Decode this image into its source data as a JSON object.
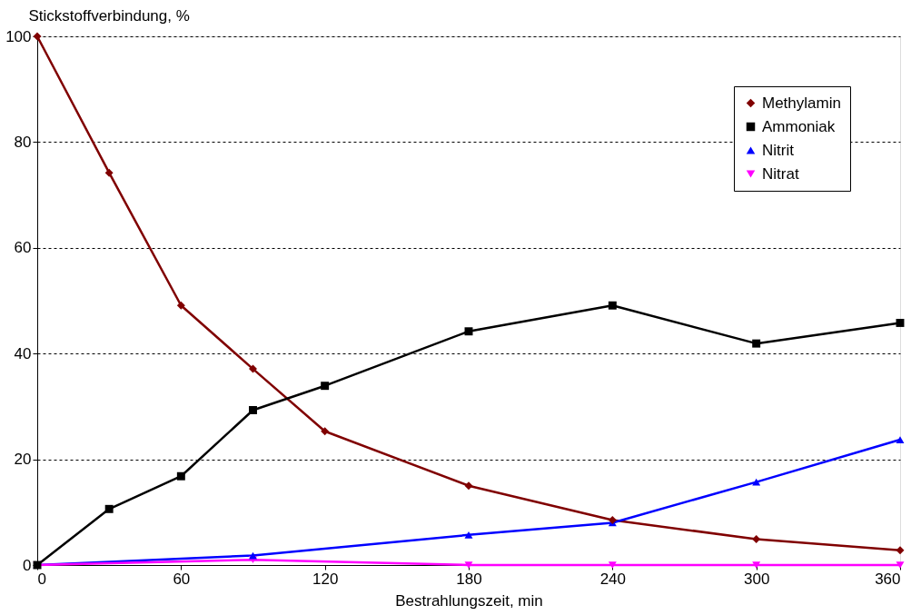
{
  "chart_data": {
    "type": "line",
    "xlabel": "Bestrahlungszeit,  min",
    "ylabel": "Stickstoffverbindung,  %",
    "xlim": [
      0,
      360
    ],
    "xticks": [
      0,
      60,
      120,
      180,
      240,
      300,
      360
    ],
    "ylim": [
      0,
      100
    ],
    "yticks": [
      0,
      20,
      40,
      60,
      80,
      100
    ],
    "grid": "y",
    "legend": "top right",
    "line_style": "solid",
    "series": [
      {
        "name": "Methylamin",
        "color": "#800000",
        "marker": "diamond",
        "x": [
          0,
          30,
          60,
          90,
          120,
          180,
          240,
          300,
          360
        ],
        "values": [
          100,
          74.2,
          49.1,
          37.1,
          25.3,
          15.0,
          8.5,
          4.9,
          2.8
        ]
      },
      {
        "name": "Ammoniak",
        "color": "#000000",
        "marker": "square",
        "x": [
          0,
          30,
          60,
          90,
          120,
          180,
          240,
          300,
          360
        ],
        "values": [
          0,
          10.6,
          16.8,
          29.3,
          33.9,
          44.2,
          49.1,
          41.9,
          45.8
        ]
      },
      {
        "name": "Nitrit",
        "color": "#0000ff",
        "marker": "triangle",
        "x": [
          0,
          90,
          180,
          240,
          300,
          360
        ],
        "values": [
          0,
          1.8,
          5.7,
          8.0,
          15.7,
          23.7
        ]
      },
      {
        "name": "Nitrat",
        "color": "#ff00ff",
        "marker": "triangle-down",
        "x": [
          0,
          90,
          180,
          240,
          300,
          360
        ],
        "values": [
          0,
          1.0,
          0,
          0,
          0,
          0
        ]
      }
    ]
  }
}
